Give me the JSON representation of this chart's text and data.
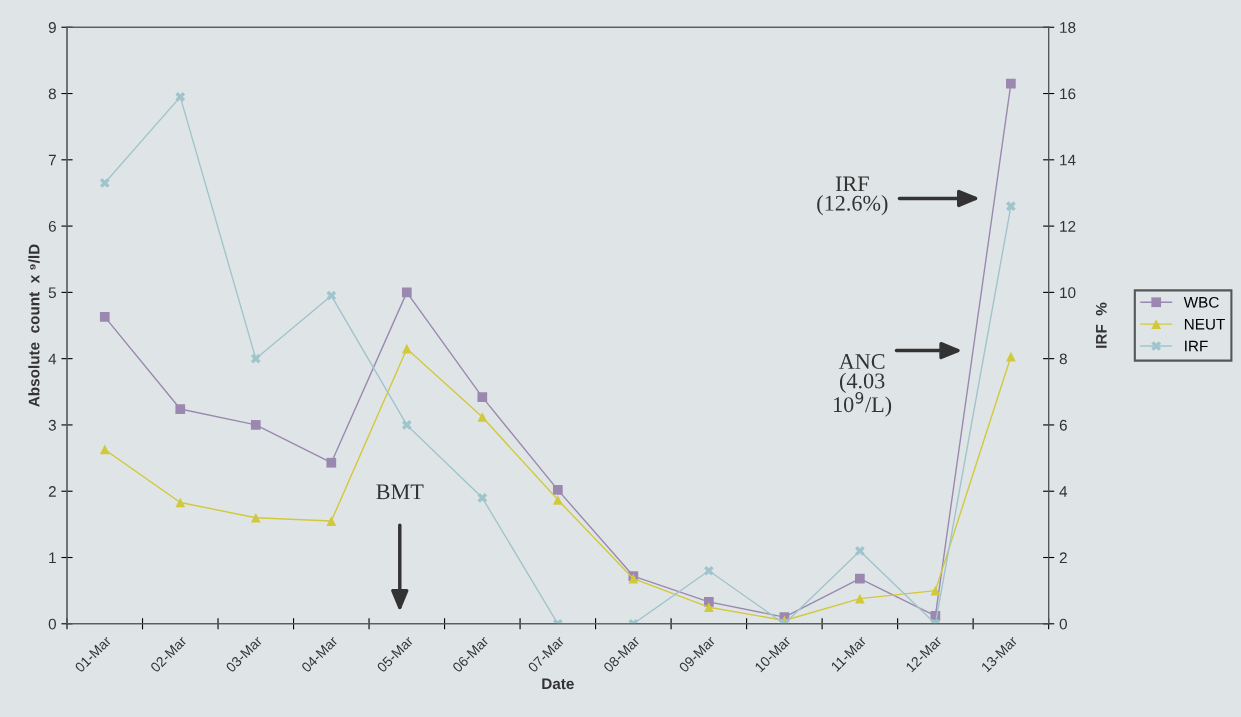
{
  "chart_data": {
    "type": "line",
    "xlabel": "Date",
    "ylabel": "Absolute  count  x ⁹/lD",
    "y2label": "IRF  %",
    "categories": [
      "01-Mar",
      "02-Mar",
      "03-Mar",
      "04-Mar",
      "05-Mar",
      "06-Mar",
      "07-Mar",
      "08-Mar",
      "09-Mar",
      "10-Mar",
      "11-Mar",
      "12-Mar",
      "13-Mar"
    ],
    "series": [
      {
        "name": "WBC",
        "color": "#9a88b0",
        "marker": "square",
        "values": [
          4.63,
          3.24,
          3.0,
          2.43,
          5.0,
          3.42,
          2.02,
          0.72,
          0.33,
          0.1,
          0.68,
          0.12,
          8.15
        ]
      },
      {
        "name": "NEUT",
        "color": "#d2c83c",
        "marker": "triangle",
        "values": [
          2.63,
          1.83,
          1.6,
          1.55,
          4.15,
          3.12,
          1.87,
          0.68,
          0.25,
          0.05,
          0.38,
          0.5,
          4.03
        ]
      },
      {
        "name": "IRF",
        "color": "#a0c4cc",
        "marker": "cross",
        "axis": "y2",
        "values": [
          13.3,
          15.9,
          8.0,
          9.9,
          6.0,
          3.8,
          0,
          0,
          1.6,
          0,
          2.2,
          0,
          12.6
        ]
      }
    ],
    "ylim": [
      0,
      9
    ],
    "yticks": [
      0,
      1,
      2,
      3,
      4,
      5,
      6,
      7,
      8,
      9
    ],
    "y2lim": [
      0,
      18
    ],
    "y2ticks": [
      0,
      2,
      4,
      6,
      8,
      10,
      12,
      14,
      16,
      18
    ],
    "grid": false,
    "legend": "right",
    "line_style": "solid",
    "annotations": [
      "BMT",
      "IRF\n(12.6%)",
      "ANC\n(4.03\n10$^{9}$/L)"
    ]
  }
}
